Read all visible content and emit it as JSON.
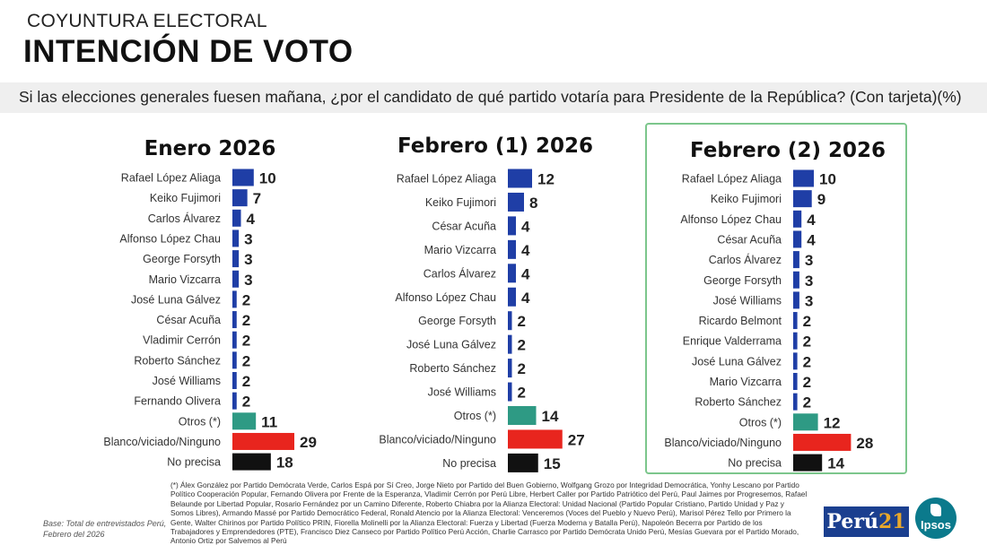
{
  "header": {
    "kicker": "COYUNTURA ELECTORAL",
    "title": "INTENCIÓN DE VOTO",
    "question": "Si las elecciones generales fuesen mañana, ¿por el candidato de qué partido votaría para Presidente de la República?  (Con tarjeta)(%)"
  },
  "colors": {
    "candidate": "#1f3ea6",
    "otros": "#2e9a84",
    "blanco": "#e8251e",
    "noprecisa": "#111111",
    "highlight": "#7cc68c"
  },
  "chart_data": [
    {
      "type": "bar",
      "orientation": "horizontal",
      "title": "Enero 2026",
      "categories": [
        "Rafael López Aliaga",
        "Keiko Fujimori",
        "Carlos Álvarez",
        "Alfonso López Chau",
        "George Forsyth",
        "Mario Vizcarra",
        "José Luna Gálvez",
        "César Acuña",
        "Vladimir Cerrón",
        "Roberto Sánchez",
        "José Williams",
        "Fernando Olivera",
        "Otros (*)",
        "Blanco/viciado/Ninguno",
        "No precisa"
      ],
      "values": [
        10,
        7,
        4,
        3,
        3,
        3,
        2,
        2,
        2,
        2,
        2,
        2,
        11,
        29,
        18
      ],
      "kinds": [
        "candidate",
        "candidate",
        "candidate",
        "candidate",
        "candidate",
        "candidate",
        "candidate",
        "candidate",
        "candidate",
        "candidate",
        "candidate",
        "candidate",
        "otros",
        "blanco",
        "noprecisa"
      ]
    },
    {
      "type": "bar",
      "orientation": "horizontal",
      "title": "Febrero (1) 2026",
      "categories": [
        "Rafael López Aliaga",
        "Keiko Fujimori",
        "César Acuña",
        "Mario Vizcarra",
        "Carlos Álvarez",
        "Alfonso López Chau",
        "George Forsyth",
        "José Luna Gálvez",
        "Roberto Sánchez",
        "José Williams",
        "Otros (*)",
        "Blanco/viciado/Ninguno",
        "No precisa"
      ],
      "values": [
        12,
        8,
        4,
        4,
        4,
        4,
        2,
        2,
        2,
        2,
        14,
        27,
        15
      ],
      "kinds": [
        "candidate",
        "candidate",
        "candidate",
        "candidate",
        "candidate",
        "candidate",
        "candidate",
        "candidate",
        "candidate",
        "candidate",
        "otros",
        "blanco",
        "noprecisa"
      ]
    },
    {
      "type": "bar",
      "orientation": "horizontal",
      "title": "Febrero (2) 2026",
      "categories": [
        "Rafael López Aliaga",
        "Keiko Fujimori",
        "Alfonso López Chau",
        "César Acuña",
        "Carlos Álvarez",
        "George Forsyth",
        "José Williams",
        "Ricardo Belmont",
        "Enrique Valderrama",
        "José Luna Gálvez",
        "Mario Vizcarra",
        "Roberto Sánchez",
        "Otros (*)",
        "Blanco/viciado/Ninguno",
        "No precisa"
      ],
      "values": [
        10,
        9,
        4,
        4,
        3,
        3,
        3,
        2,
        2,
        2,
        2,
        2,
        12,
        28,
        14
      ],
      "kinds": [
        "candidate",
        "candidate",
        "candidate",
        "candidate",
        "candidate",
        "candidate",
        "candidate",
        "candidate",
        "candidate",
        "candidate",
        "candidate",
        "candidate",
        "otros",
        "blanco",
        "noprecisa"
      ]
    }
  ],
  "footnote": "(*) Álex González por Partido Demócrata Verde, Carlos Espá por Sí Creo, Jorge Nieto por Partido del Buen Gobierno, Wolfgang Grozo por Integridad Democrática, Yonhy Lescano por Partido Político Cooperación Popular, Fernando Olivera por Frente de la Esperanza, Vladimir Cerrón por Perú Libre, Herbert Caller por Partido Patriótico del Perú, Paul Jaimes por Progresemos, Rafael Belaunde por Libertad Popular, Rosario Fernández por un Camino Diferente, Roberto Chiabra por la Alianza Electoral: Unidad Nacional (Partido Popular Cristiano, Partido Unidad y Paz y Somos Libres), Armando Massé por Partido Democrático Federal, Ronald Atencio por la Alianza Electoral: Venceremos (Voces del Pueblo y Nuevo Perú), Marisol Pérez Tello por Primero la Gente, Walter Chirinos por Partido Político PRIN, Fiorella Molinelli por la Alianza Electoral: Fuerza y Libertad (Fuerza Moderna y Batalla Perú), Napoleón Becerra por Partido de los Trabajadores y Emprendedores (PTE), Francisco Diez Canseco por Partido Político Perú Acción, Charlie Carrasco por Partido Demócrata Unido Perú, Mesías Guevara por el Partido Morado, Antonio Ortiz por Salvemos al Perú",
  "base_note": "Base: Total de entrevistados Perú, Febrero del 2026",
  "logos": {
    "peru21_text": "Perú",
    "peru21_num": "21",
    "ipsos": "Ipsos"
  }
}
